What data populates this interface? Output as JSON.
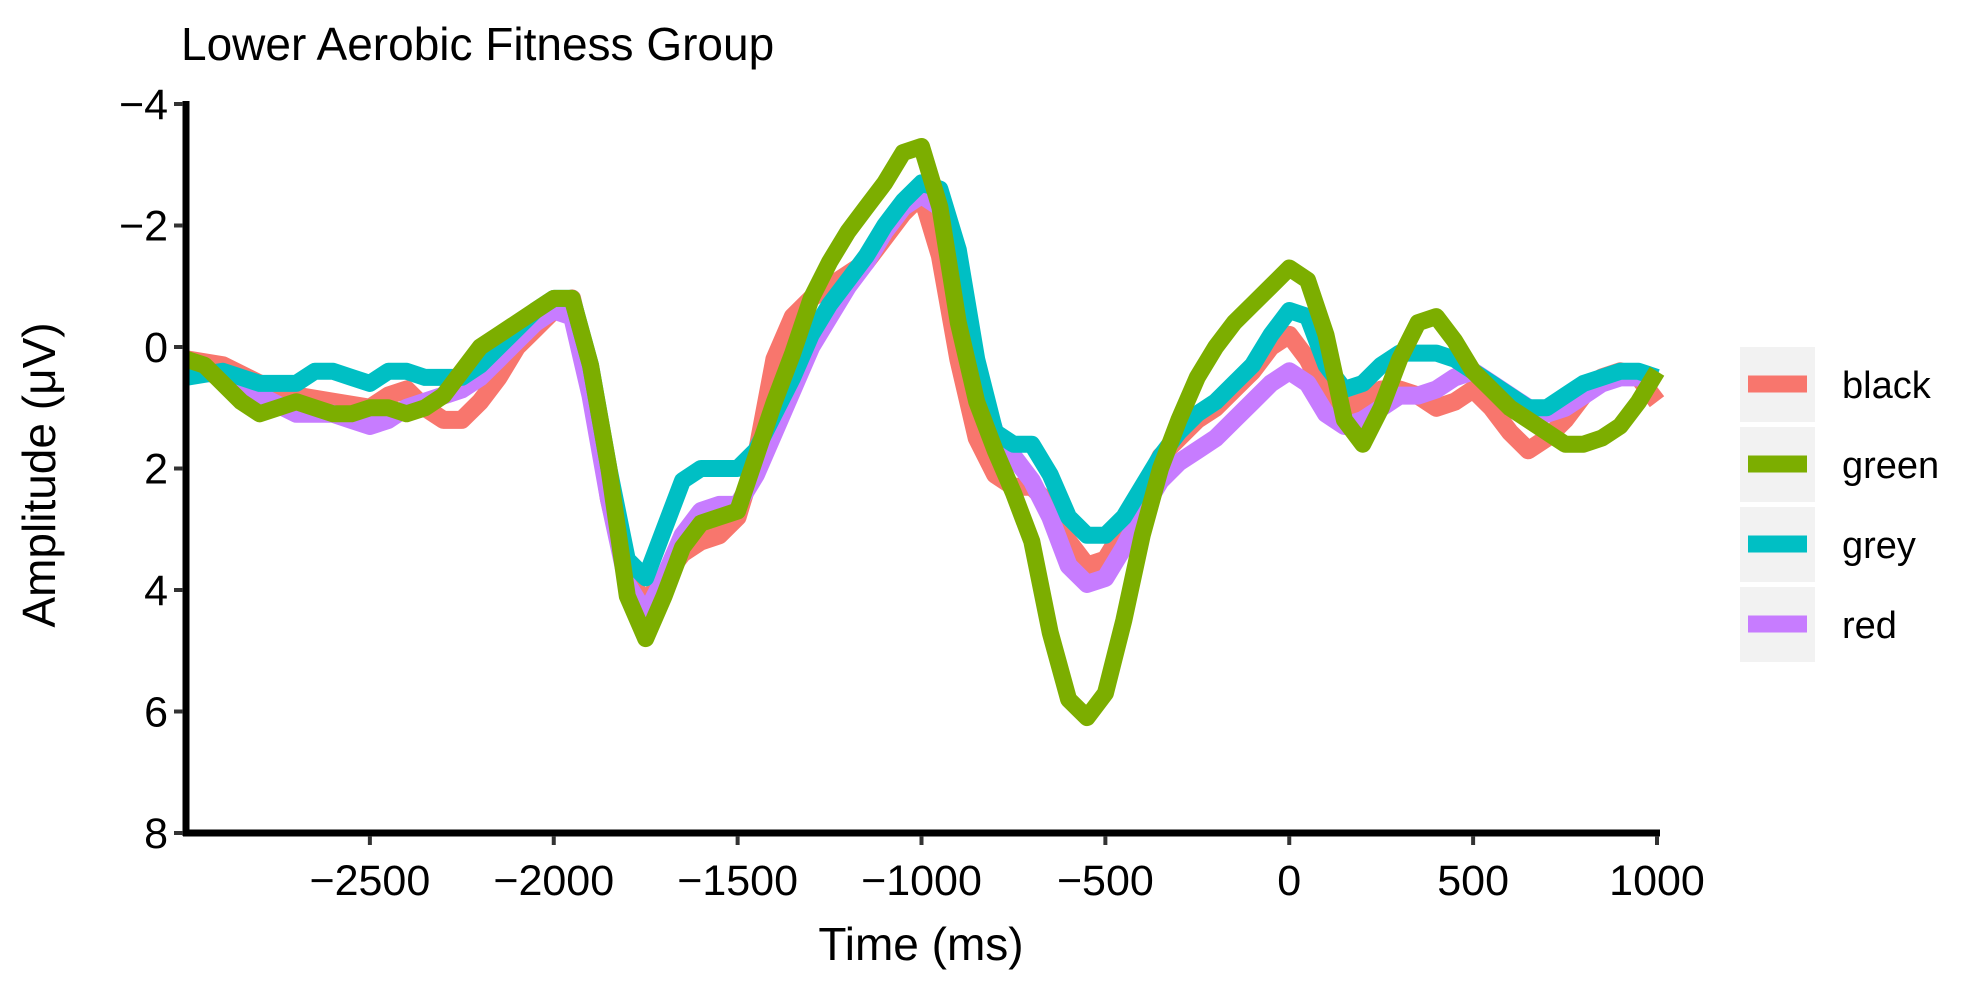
{
  "chart_data": {
    "type": "line",
    "title": "Lower Aerobic Fitness Group",
    "xlabel": "Time (ms)",
    "ylabel": "Amplitude (μV)",
    "xlim": [
      -3000,
      1000
    ],
    "ylim": [
      8,
      -4
    ],
    "y_axis_reversed": true,
    "x_ticks": [
      -2500,
      -2000,
      -1500,
      -1000,
      -500,
      0,
      500,
      1000
    ],
    "x_tick_labels": [
      "−2500",
      "−2000",
      "−1500",
      "−1000",
      "−500",
      "0",
      "500",
      "1000"
    ],
    "y_ticks": [
      -4,
      -2,
      0,
      2,
      4,
      6,
      8
    ],
    "y_tick_labels": [
      "−4",
      "−2",
      "0",
      "2",
      "4",
      "6",
      "8"
    ],
    "grid": false,
    "legend_position": "right",
    "series": [
      {
        "name": "black",
        "color": "#F8766D",
        "points": [
          [
            -3000,
            0.2
          ],
          [
            -2900,
            0.3
          ],
          [
            -2800,
            0.6
          ],
          [
            -2700,
            0.8
          ],
          [
            -2600,
            0.9
          ],
          [
            -2500,
            1.0
          ],
          [
            -2450,
            0.8
          ],
          [
            -2400,
            0.7
          ],
          [
            -2350,
            1.0
          ],
          [
            -2300,
            1.2
          ],
          [
            -2250,
            1.2
          ],
          [
            -2200,
            0.9
          ],
          [
            -2150,
            0.5
          ],
          [
            -2100,
            0.0
          ],
          [
            -2050,
            -0.3
          ],
          [
            -2000,
            -0.6
          ],
          [
            -1950,
            -0.8
          ],
          [
            -1900,
            0.5
          ],
          [
            -1850,
            2.5
          ],
          [
            -1800,
            3.8
          ],
          [
            -1750,
            4.2
          ],
          [
            -1700,
            3.8
          ],
          [
            -1650,
            3.4
          ],
          [
            -1600,
            3.2
          ],
          [
            -1550,
            3.1
          ],
          [
            -1500,
            2.8
          ],
          [
            -1450,
            1.8
          ],
          [
            -1400,
            0.2
          ],
          [
            -1350,
            -0.5
          ],
          [
            -1300,
            -0.8
          ],
          [
            -1250,
            -1.0
          ],
          [
            -1200,
            -1.2
          ],
          [
            -1150,
            -1.4
          ],
          [
            -1100,
            -1.8
          ],
          [
            -1050,
            -2.2
          ],
          [
            -1000,
            -2.5
          ],
          [
            -950,
            -1.5
          ],
          [
            -900,
            0.2
          ],
          [
            -850,
            1.5
          ],
          [
            -800,
            2.1
          ],
          [
            -750,
            2.3
          ],
          [
            -700,
            2.3
          ],
          [
            -650,
            2.6
          ],
          [
            -600,
            3.2
          ],
          [
            -550,
            3.6
          ],
          [
            -500,
            3.5
          ],
          [
            -450,
            3.0
          ],
          [
            -400,
            2.4
          ],
          [
            -350,
            1.8
          ],
          [
            -300,
            1.5
          ],
          [
            -250,
            1.2
          ],
          [
            -200,
            1.0
          ],
          [
            -150,
            0.7
          ],
          [
            -100,
            0.4
          ],
          [
            -50,
            0.0
          ],
          [
            0,
            -0.2
          ],
          [
            50,
            0.2
          ],
          [
            100,
            0.8
          ],
          [
            150,
            1.0
          ],
          [
            200,
            0.9
          ],
          [
            250,
            0.7
          ],
          [
            300,
            0.7
          ],
          [
            350,
            0.8
          ],
          [
            400,
            1.0
          ],
          [
            450,
            0.9
          ],
          [
            500,
            0.7
          ],
          [
            550,
            1.0
          ],
          [
            600,
            1.4
          ],
          [
            650,
            1.7
          ],
          [
            700,
            1.5
          ],
          [
            750,
            1.2
          ],
          [
            800,
            0.8
          ],
          [
            850,
            0.5
          ],
          [
            900,
            0.4
          ],
          [
            950,
            0.5
          ],
          [
            1000,
            0.9
          ]
        ]
      },
      {
        "name": "green",
        "color": "#7CAE00",
        "points": [
          [
            -3000,
            0.2
          ],
          [
            -2950,
            0.3
          ],
          [
            -2900,
            0.6
          ],
          [
            -2850,
            0.9
          ],
          [
            -2800,
            1.1
          ],
          [
            -2750,
            1.0
          ],
          [
            -2700,
            0.9
          ],
          [
            -2650,
            1.0
          ],
          [
            -2600,
            1.1
          ],
          [
            -2550,
            1.1
          ],
          [
            -2500,
            1.0
          ],
          [
            -2450,
            1.0
          ],
          [
            -2400,
            1.1
          ],
          [
            -2350,
            1.0
          ],
          [
            -2300,
            0.8
          ],
          [
            -2250,
            0.4
          ],
          [
            -2200,
            0.0
          ],
          [
            -2150,
            -0.2
          ],
          [
            -2100,
            -0.4
          ],
          [
            -2050,
            -0.6
          ],
          [
            -2000,
            -0.8
          ],
          [
            -1950,
            -0.8
          ],
          [
            -1900,
            0.3
          ],
          [
            -1850,
            2.0
          ],
          [
            -1800,
            4.1
          ],
          [
            -1750,
            4.8
          ],
          [
            -1700,
            4.1
          ],
          [
            -1650,
            3.3
          ],
          [
            -1600,
            2.9
          ],
          [
            -1550,
            2.8
          ],
          [
            -1500,
            2.7
          ],
          [
            -1450,
            1.8
          ],
          [
            -1400,
            0.9
          ],
          [
            -1350,
            0.1
          ],
          [
            -1300,
            -0.8
          ],
          [
            -1250,
            -1.4
          ],
          [
            -1200,
            -1.9
          ],
          [
            -1150,
            -2.3
          ],
          [
            -1100,
            -2.7
          ],
          [
            -1050,
            -3.2
          ],
          [
            -1000,
            -3.3
          ],
          [
            -950,
            -2.3
          ],
          [
            -900,
            -0.4
          ],
          [
            -850,
            0.9
          ],
          [
            -800,
            1.7
          ],
          [
            -750,
            2.4
          ],
          [
            -700,
            3.2
          ],
          [
            -650,
            4.7
          ],
          [
            -600,
            5.8
          ],
          [
            -550,
            6.1
          ],
          [
            -500,
            5.7
          ],
          [
            -450,
            4.5
          ],
          [
            -400,
            3.1
          ],
          [
            -350,
            2.0
          ],
          [
            -300,
            1.2
          ],
          [
            -250,
            0.5
          ],
          [
            -200,
            0.0
          ],
          [
            -150,
            -0.4
          ],
          [
            -100,
            -0.7
          ],
          [
            -50,
            -1.0
          ],
          [
            0,
            -1.3
          ],
          [
            50,
            -1.1
          ],
          [
            100,
            -0.2
          ],
          [
            150,
            1.2
          ],
          [
            200,
            1.6
          ],
          [
            250,
            1.0
          ],
          [
            300,
            0.2
          ],
          [
            350,
            -0.4
          ],
          [
            400,
            -0.5
          ],
          [
            450,
            -0.1
          ],
          [
            500,
            0.4
          ],
          [
            550,
            0.7
          ],
          [
            600,
            1.0
          ],
          [
            650,
            1.2
          ],
          [
            700,
            1.4
          ],
          [
            750,
            1.6
          ],
          [
            800,
            1.6
          ],
          [
            850,
            1.5
          ],
          [
            900,
            1.3
          ],
          [
            950,
            0.9
          ],
          [
            1000,
            0.4
          ]
        ]
      },
      {
        "name": "grey",
        "color": "#00BFC4",
        "points": [
          [
            -3000,
            0.5
          ],
          [
            -2900,
            0.4
          ],
          [
            -2800,
            0.6
          ],
          [
            -2700,
            0.6
          ],
          [
            -2650,
            0.4
          ],
          [
            -2600,
            0.4
          ],
          [
            -2550,
            0.5
          ],
          [
            -2500,
            0.6
          ],
          [
            -2450,
            0.4
          ],
          [
            -2400,
            0.4
          ],
          [
            -2350,
            0.5
          ],
          [
            -2300,
            0.5
          ],
          [
            -2250,
            0.5
          ],
          [
            -2200,
            0.3
          ],
          [
            -2150,
            0.0
          ],
          [
            -2100,
            -0.3
          ],
          [
            -2050,
            -0.6
          ],
          [
            -2000,
            -0.8
          ],
          [
            -1950,
            -0.8
          ],
          [
            -1900,
            0.3
          ],
          [
            -1850,
            2.0
          ],
          [
            -1800,
            3.5
          ],
          [
            -1750,
            3.8
          ],
          [
            -1700,
            3.0
          ],
          [
            -1650,
            2.2
          ],
          [
            -1600,
            2.0
          ],
          [
            -1550,
            2.0
          ],
          [
            -1500,
            2.0
          ],
          [
            -1450,
            1.7
          ],
          [
            -1400,
            1.1
          ],
          [
            -1350,
            0.5
          ],
          [
            -1300,
            -0.2
          ],
          [
            -1250,
            -0.7
          ],
          [
            -1200,
            -1.1
          ],
          [
            -1150,
            -1.5
          ],
          [
            -1100,
            -2.0
          ],
          [
            -1050,
            -2.4
          ],
          [
            -1000,
            -2.7
          ],
          [
            -950,
            -2.6
          ],
          [
            -900,
            -1.6
          ],
          [
            -850,
            0.2
          ],
          [
            -800,
            1.4
          ],
          [
            -750,
            1.6
          ],
          [
            -700,
            1.6
          ],
          [
            -650,
            2.1
          ],
          [
            -600,
            2.8
          ],
          [
            -550,
            3.1
          ],
          [
            -500,
            3.1
          ],
          [
            -450,
            2.8
          ],
          [
            -400,
            2.3
          ],
          [
            -350,
            1.8
          ],
          [
            -300,
            1.4
          ],
          [
            -250,
            1.1
          ],
          [
            -200,
            0.9
          ],
          [
            -150,
            0.6
          ],
          [
            -100,
            0.3
          ],
          [
            -50,
            -0.2
          ],
          [
            0,
            -0.6
          ],
          [
            50,
            -0.5
          ],
          [
            100,
            0.3
          ],
          [
            150,
            0.7
          ],
          [
            200,
            0.6
          ],
          [
            250,
            0.3
          ],
          [
            300,
            0.1
          ],
          [
            350,
            0.1
          ],
          [
            400,
            0.1
          ],
          [
            450,
            0.2
          ],
          [
            500,
            0.4
          ],
          [
            550,
            0.6
          ],
          [
            600,
            0.8
          ],
          [
            650,
            1.0
          ],
          [
            700,
            1.0
          ],
          [
            750,
            0.8
          ],
          [
            800,
            0.6
          ],
          [
            850,
            0.5
          ],
          [
            900,
            0.4
          ],
          [
            950,
            0.4
          ],
          [
            1000,
            0.5
          ]
        ]
      },
      {
        "name": "red",
        "color": "#C77CFF",
        "points": [
          [
            -3000,
            0.3
          ],
          [
            -2900,
            0.5
          ],
          [
            -2800,
            0.8
          ],
          [
            -2700,
            1.1
          ],
          [
            -2600,
            1.1
          ],
          [
            -2550,
            1.2
          ],
          [
            -2500,
            1.3
          ],
          [
            -2450,
            1.2
          ],
          [
            -2400,
            1.0
          ],
          [
            -2350,
            0.9
          ],
          [
            -2300,
            0.8
          ],
          [
            -2250,
            0.7
          ],
          [
            -2200,
            0.5
          ],
          [
            -2150,
            0.2
          ],
          [
            -2100,
            -0.1
          ],
          [
            -2050,
            -0.4
          ],
          [
            -2000,
            -0.6
          ],
          [
            -1950,
            -0.5
          ],
          [
            -1900,
            0.8
          ],
          [
            -1850,
            2.5
          ],
          [
            -1800,
            3.9
          ],
          [
            -1750,
            4.4
          ],
          [
            -1700,
            3.8
          ],
          [
            -1650,
            3.1
          ],
          [
            -1600,
            2.7
          ],
          [
            -1550,
            2.6
          ],
          [
            -1500,
            2.6
          ],
          [
            -1450,
            2.1
          ],
          [
            -1400,
            1.4
          ],
          [
            -1350,
            0.7
          ],
          [
            -1300,
            0.0
          ],
          [
            -1250,
            -0.5
          ],
          [
            -1200,
            -1.0
          ],
          [
            -1150,
            -1.4
          ],
          [
            -1100,
            -1.9
          ],
          [
            -1050,
            -2.3
          ],
          [
            -1000,
            -2.5
          ],
          [
            -950,
            -2.3
          ],
          [
            -900,
            -1.1
          ],
          [
            -850,
            0.5
          ],
          [
            -800,
            1.4
          ],
          [
            -750,
            1.8
          ],
          [
            -700,
            2.2
          ],
          [
            -650,
            2.8
          ],
          [
            -600,
            3.6
          ],
          [
            -550,
            3.9
          ],
          [
            -500,
            3.8
          ],
          [
            -450,
            3.3
          ],
          [
            -400,
            2.7
          ],
          [
            -350,
            2.2
          ],
          [
            -300,
            1.9
          ],
          [
            -250,
            1.7
          ],
          [
            -200,
            1.5
          ],
          [
            -150,
            1.2
          ],
          [
            -100,
            0.9
          ],
          [
            -50,
            0.6
          ],
          [
            0,
            0.4
          ],
          [
            50,
            0.6
          ],
          [
            100,
            1.1
          ],
          [
            150,
            1.3
          ],
          [
            200,
            1.2
          ],
          [
            250,
            1.0
          ],
          [
            300,
            0.8
          ],
          [
            350,
            0.8
          ],
          [
            400,
            0.7
          ],
          [
            450,
            0.5
          ],
          [
            500,
            0.4
          ],
          [
            550,
            0.6
          ],
          [
            600,
            0.8
          ],
          [
            650,
            1.0
          ],
          [
            700,
            1.1
          ],
          [
            750,
            1.0
          ],
          [
            800,
            0.8
          ],
          [
            850,
            0.6
          ],
          [
            900,
            0.5
          ],
          [
            950,
            0.5
          ],
          [
            1000,
            0.6
          ]
        ]
      }
    ]
  }
}
